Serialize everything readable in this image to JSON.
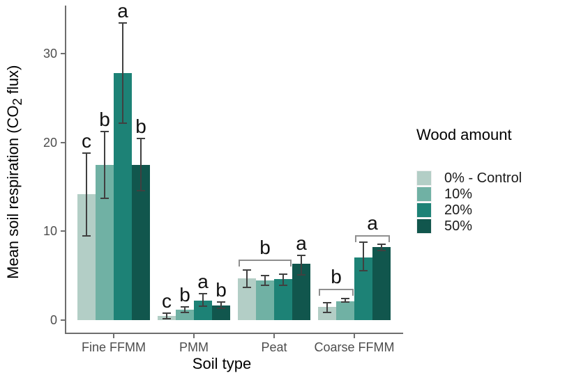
{
  "chart_data": {
    "type": "bar",
    "title": "",
    "xlabel": "Soil type",
    "ylabel": "Mean soil respiration (CO2 flux)",
    "ylabel_parts": [
      "Mean soil respiration (CO",
      "2",
      " flux)"
    ],
    "categories": [
      "Fine FFMM",
      "PMM",
      "Peat",
      "Coarse FFMM"
    ],
    "legend": {
      "title": "Wood amount",
      "position": "right"
    },
    "grid": false,
    "ylim": [
      0,
      35
    ],
    "yticks": [
      "0",
      "10",
      "20",
      "30"
    ],
    "ytick_values": [
      0,
      10,
      20,
      30
    ],
    "series": [
      {
        "name": "0% - Control",
        "color": "#b3cec6",
        "values": [
          14.2,
          0.45,
          4.7,
          1.45
        ],
        "err_lo": [
          9.5,
          0.15,
          3.7,
          0.85
        ],
        "err_hi": [
          18.8,
          0.75,
          5.6,
          1.95
        ]
      },
      {
        "name": "10%",
        "color": "#70b1a4",
        "values": [
          17.5,
          1.15,
          4.45,
          2.15
        ],
        "err_lo": [
          13.7,
          0.9,
          3.9,
          2.0
        ],
        "err_hi": [
          21.2,
          1.5,
          5.0,
          2.4
        ]
      },
      {
        "name": "20%",
        "color": "#1d8276",
        "values": [
          27.8,
          2.2,
          4.6,
          7.05
        ],
        "err_lo": [
          22.2,
          1.55,
          3.95,
          5.55
        ],
        "err_hi": [
          33.4,
          3.0,
          5.15,
          8.75
        ]
      },
      {
        "name": "50%",
        "color": "#11564d",
        "values": [
          17.5,
          1.65,
          6.35,
          8.2
        ],
        "err_lo": [
          14.6,
          1.3,
          5.1,
          7.85
        ],
        "err_hi": [
          20.4,
          2.0,
          7.3,
          8.5
        ]
      }
    ],
    "letters": [
      [
        "c",
        "b",
        "a",
        "b"
      ],
      [
        "c",
        "b",
        "a",
        "b"
      ],
      [
        null,
        null,
        null,
        "a"
      ],
      [
        null,
        null,
        null,
        null
      ]
    ],
    "brackets": [
      {
        "group": 2,
        "from": 0,
        "to": 2,
        "label": "b",
        "y": 6.8
      },
      {
        "group": 3,
        "from": 0,
        "to": 1,
        "label": "b",
        "y": 3.5
      },
      {
        "group": 3,
        "from": 2,
        "to": 3,
        "label": "a",
        "y": 9.55
      }
    ]
  }
}
